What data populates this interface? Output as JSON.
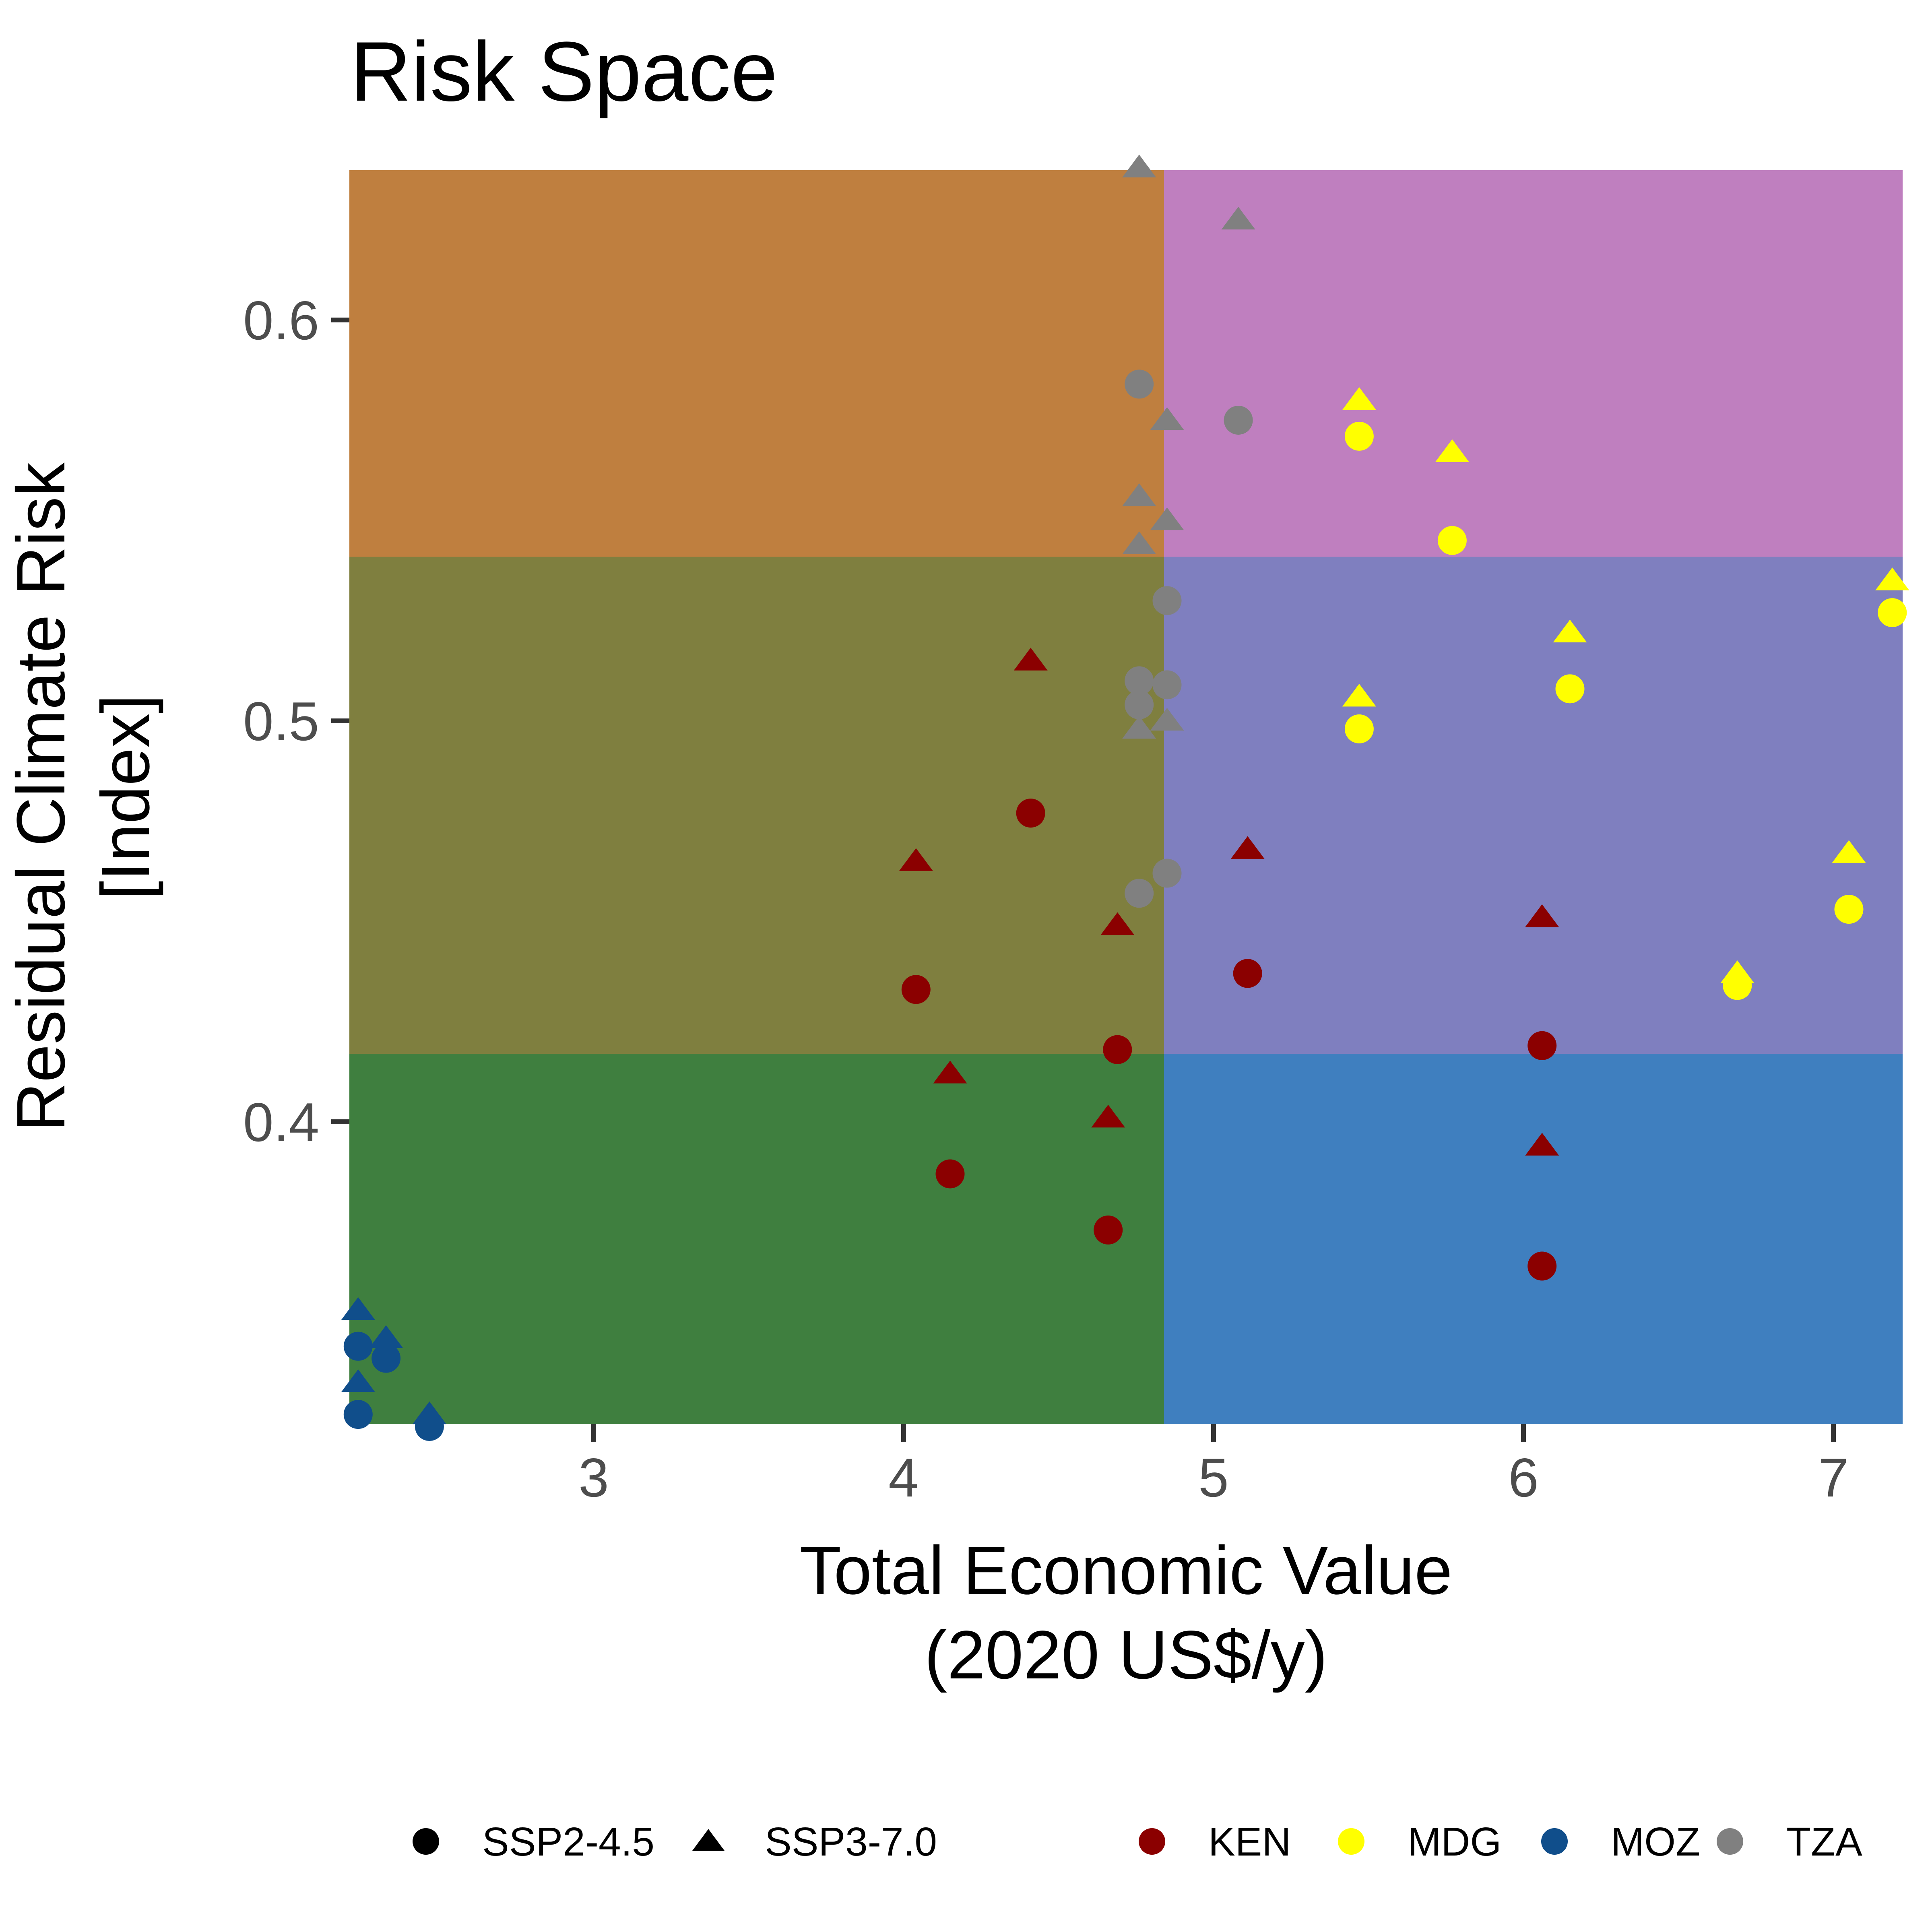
{
  "chart_data": {
    "type": "scatter",
    "title": "Risk Space",
    "xlabel": [
      "Total Economic Value",
      "(2020 US$/y)"
    ],
    "ylabel": [
      "Residual Climate Risk",
      "[Index]"
    ],
    "xlim": [
      2.22,
      7.22
    ],
    "ylim": [
      0.324,
      0.637
    ],
    "xticks": [
      3,
      4,
      5,
      6,
      7
    ],
    "yticks": [
      0.4,
      0.5,
      0.6
    ],
    "xtick_labels": [
      "3",
      "4",
      "5",
      "6",
      "7"
    ],
    "ytick_labels": [
      "0.4",
      "0.5",
      "0.6"
    ],
    "grid": false,
    "legend_position": "bottom",
    "background_zones": {
      "x_split": 4.84,
      "y_splits": [
        0.417,
        0.541
      ],
      "colors": {
        "low_value_high_risk": "#BF7F3F",
        "low_value_mid_risk": "#7F7F3F",
        "low_value_low_risk": "#3F7F3F",
        "high_value_high_risk": "#BF7FBF",
        "high_value_mid_risk": "#7F7FBF",
        "high_value_low_risk": "#3F7FBF"
      }
    },
    "shape_legend": [
      {
        "label": "SSP2-4.5",
        "shape": "circle"
      },
      {
        "label": "SSP3-7.0",
        "shape": "triangle"
      }
    ],
    "color_legend": [
      {
        "label": "KEN",
        "color": "#8B0000"
      },
      {
        "label": "MDG",
        "color": "#FFFF00"
      },
      {
        "label": "MOZ",
        "color": "#104E8B"
      },
      {
        "label": "TZA",
        "color": "#808080"
      }
    ],
    "series": [
      {
        "country": "TZA",
        "scenario": "SSP2-4.5",
        "points": [
          [
            4.76,
            0.584
          ],
          [
            5.08,
            0.575
          ],
          [
            4.85,
            0.53
          ],
          [
            4.76,
            0.51
          ],
          [
            4.85,
            0.509
          ],
          [
            4.76,
            0.504
          ],
          [
            4.85,
            0.462
          ],
          [
            4.76,
            0.457
          ]
        ]
      },
      {
        "country": "TZA",
        "scenario": "SSP3-7.0",
        "points": [
          [
            4.76,
            0.638
          ],
          [
            5.08,
            0.625
          ],
          [
            4.85,
            0.575
          ],
          [
            4.76,
            0.556
          ],
          [
            4.85,
            0.55
          ],
          [
            4.76,
            0.544
          ],
          [
            4.76,
            0.498
          ],
          [
            4.85,
            0.5
          ]
        ]
      },
      {
        "country": "MDG",
        "scenario": "SSP2-4.5",
        "points": [
          [
            5.47,
            0.571
          ],
          [
            5.77,
            0.545
          ],
          [
            7.19,
            0.527
          ],
          [
            6.15,
            0.508
          ],
          [
            5.47,
            0.498
          ],
          [
            7.05,
            0.453
          ],
          [
            6.69,
            0.434
          ]
        ]
      },
      {
        "country": "MDG",
        "scenario": "SSP3-7.0",
        "points": [
          [
            5.47,
            0.58
          ],
          [
            5.77,
            0.567
          ],
          [
            7.19,
            0.535
          ],
          [
            6.15,
            0.522
          ],
          [
            5.47,
            0.506
          ],
          [
            7.05,
            0.467
          ],
          [
            6.69,
            0.437
          ]
        ]
      },
      {
        "country": "KEN",
        "scenario": "SSP2-4.5",
        "points": [
          [
            4.41,
            0.477
          ],
          [
            4.04,
            0.433
          ],
          [
            5.11,
            0.437
          ],
          [
            4.69,
            0.418
          ],
          [
            6.06,
            0.419
          ],
          [
            4.15,
            0.387
          ],
          [
            4.66,
            0.373
          ],
          [
            6.06,
            0.364
          ]
        ]
      },
      {
        "country": "KEN",
        "scenario": "SSP3-7.0",
        "points": [
          [
            4.41,
            0.515
          ],
          [
            4.04,
            0.465
          ],
          [
            5.11,
            0.468
          ],
          [
            4.69,
            0.449
          ],
          [
            6.06,
            0.451
          ],
          [
            4.15,
            0.412
          ],
          [
            4.66,
            0.401
          ],
          [
            6.06,
            0.394
          ]
        ]
      },
      {
        "country": "MOZ",
        "scenario": "SSP2-4.5",
        "points": [
          [
            2.24,
            0.344
          ],
          [
            2.33,
            0.341
          ],
          [
            2.24,
            0.327
          ],
          [
            2.47,
            0.324
          ]
        ]
      },
      {
        "country": "MOZ",
        "scenario": "SSP3-7.0",
        "points": [
          [
            2.24,
            0.353
          ],
          [
            2.33,
            0.346
          ],
          [
            2.24,
            0.335
          ],
          [
            2.47,
            0.327
          ]
        ]
      }
    ]
  }
}
